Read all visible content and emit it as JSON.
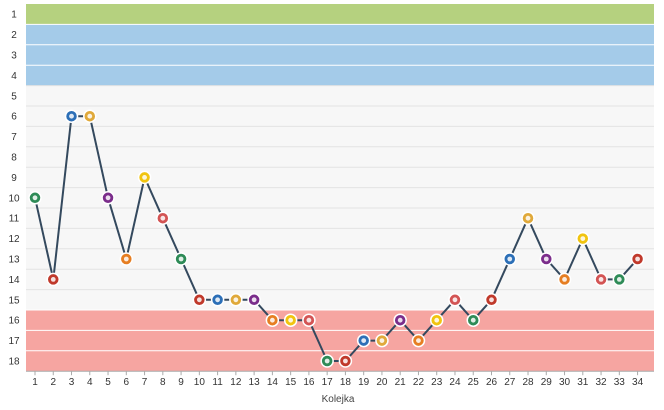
{
  "chart_data": {
    "type": "line",
    "xlabel": "Kolejka",
    "ylabel": "",
    "y_inverted": true,
    "ylim": [
      1,
      18
    ],
    "xlim": [
      1,
      34
    ],
    "grid": true,
    "x": [
      1,
      2,
      3,
      4,
      5,
      6,
      7,
      8,
      9,
      10,
      11,
      12,
      13,
      14,
      15,
      16,
      17,
      18,
      19,
      20,
      21,
      22,
      23,
      24,
      25,
      26,
      27,
      28,
      29,
      30,
      31,
      32,
      33,
      34
    ],
    "series": [
      {
        "values": [
          10,
          14,
          6,
          6,
          10,
          13,
          9,
          11,
          13,
          15,
          15,
          15,
          15,
          16,
          16,
          16,
          18,
          18,
          17,
          17,
          16,
          17,
          16,
          15,
          16,
          15,
          13,
          11,
          13,
          14,
          12,
          14,
          14,
          13
        ]
      }
    ],
    "zones": [
      {
        "from": 1,
        "to": 1,
        "color": "#b5d17f"
      },
      {
        "from": 2,
        "to": 4,
        "color": "#a4cbe9"
      },
      {
        "from": 5,
        "to": 15,
        "color": "#f7f7f7"
      },
      {
        "from": 16,
        "to": 18,
        "color": "#f6a5a1"
      }
    ],
    "colors": {
      "line": "#34495e",
      "grid": "#ffffff",
      "axis": "#aaaaaa"
    }
  }
}
